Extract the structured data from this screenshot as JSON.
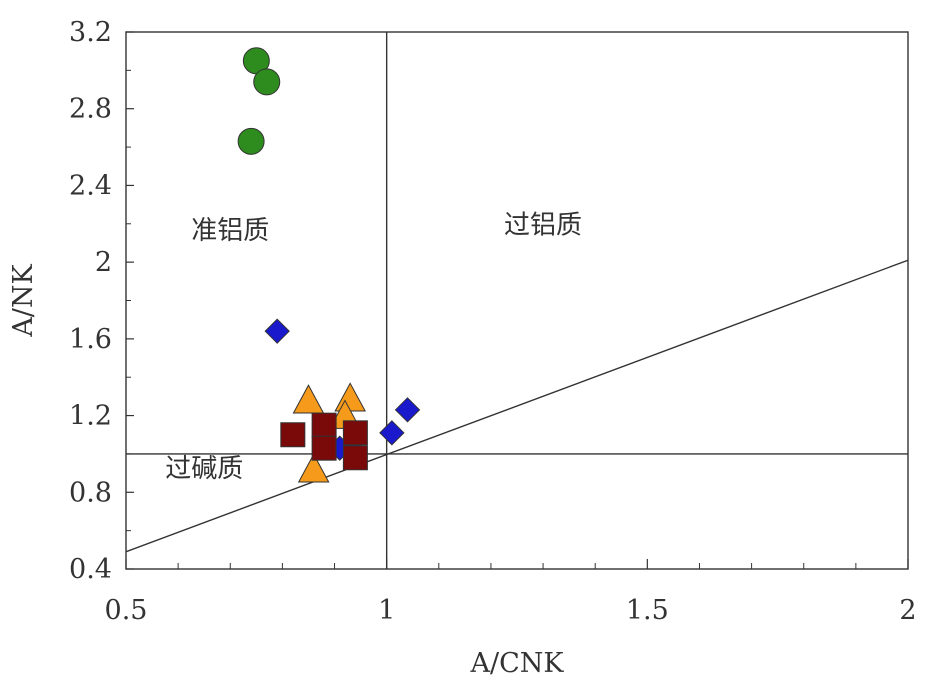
{
  "chart_data": {
    "type": "scatter",
    "title": "",
    "xlabel": "A/CNK",
    "ylabel": "A/NK",
    "xlim": [
      0.5,
      2
    ],
    "ylim": [
      0.4,
      3.2
    ],
    "x_ticks": [
      "0.5",
      "1",
      "1.5",
      "2"
    ],
    "y_ticks": [
      "0.4",
      "0.8",
      "1.2",
      "1.6",
      "2",
      "2.4",
      "2.8",
      "3.2"
    ],
    "grid": false,
    "legend": "none",
    "reference_lines": [
      {
        "type": "vertical",
        "x": 1
      },
      {
        "type": "horizontal",
        "y": 1
      },
      {
        "type": "line",
        "x": [
          0.5,
          2
        ],
        "y": [
          0.49,
          2.01
        ]
      }
    ],
    "region_labels": [
      {
        "text": "准铝质",
        "x": 0.7,
        "y": 2.12
      },
      {
        "text": "过铝质",
        "x": 1.3,
        "y": 2.15
      },
      {
        "text": "过碱质",
        "x": 0.65,
        "y": 0.88
      }
    ],
    "series": [
      {
        "marker": "circle",
        "color": "#2e8b1e",
        "x": [
          0.75,
          0.77,
          0.74
        ],
        "y": [
          3.05,
          2.94,
          2.63
        ]
      },
      {
        "marker": "diamond",
        "color": "#1a1acc",
        "x": [
          0.79,
          1.04,
          1.01,
          0.93,
          0.91
        ],
        "y": [
          1.64,
          1.23,
          1.11,
          1.04,
          1.03
        ]
      },
      {
        "marker": "triangle",
        "color": "#f59a1a",
        "x": [
          0.85,
          0.93,
          0.92,
          0.86
        ],
        "y": [
          1.28,
          1.29,
          1.2,
          0.92
        ]
      },
      {
        "marker": "square",
        "color": "#7a0a0a",
        "x": [
          0.82,
          0.88,
          0.94,
          0.88,
          0.94
        ],
        "y": [
          1.1,
          1.15,
          1.11,
          1.03,
          0.98
        ]
      }
    ]
  }
}
